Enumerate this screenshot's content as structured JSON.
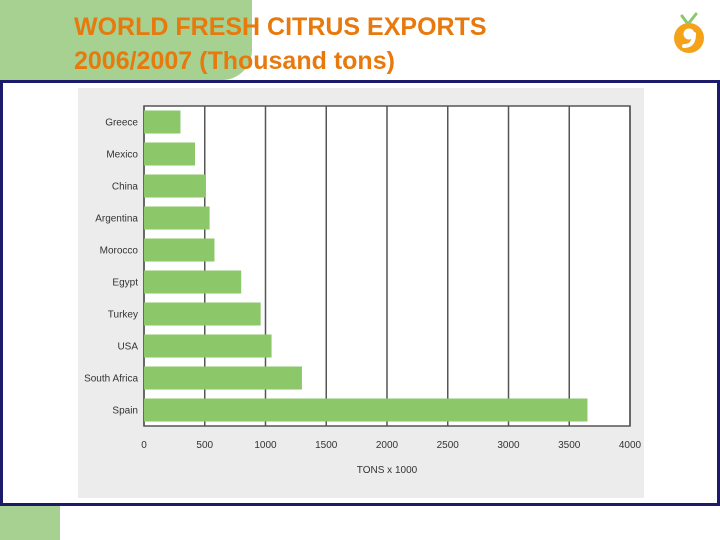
{
  "slide": {
    "title_line1": "WORLD FRESH CITRUS EXPORTS",
    "title_line2": "2006/2007 (Thousand tons)"
  },
  "colors": {
    "accent_green": "#a6d190",
    "title_orange": "#e8790c",
    "frame_navy": "#1b1b6a",
    "bar_green": "#8cc86a",
    "logo_orange": "#f5a21b"
  },
  "logo": {
    "icon": "citrus-logo-icon"
  },
  "chart_data": {
    "type": "bar",
    "orientation": "horizontal",
    "categories": [
      "Greece",
      "Mexico",
      "China",
      "Argentina",
      "Morocco",
      "Egypt",
      "Turkey",
      "USA",
      "South Africa",
      "Spain"
    ],
    "values": [
      300,
      420,
      510,
      540,
      580,
      800,
      960,
      1050,
      1300,
      3650
    ],
    "xlabel": "TONS x 1000",
    "xlim": [
      0,
      4000
    ],
    "xticks": [
      0,
      500,
      1000,
      1500,
      2000,
      2500,
      3000,
      3500,
      4000
    ],
    "grid": "vertical"
  }
}
